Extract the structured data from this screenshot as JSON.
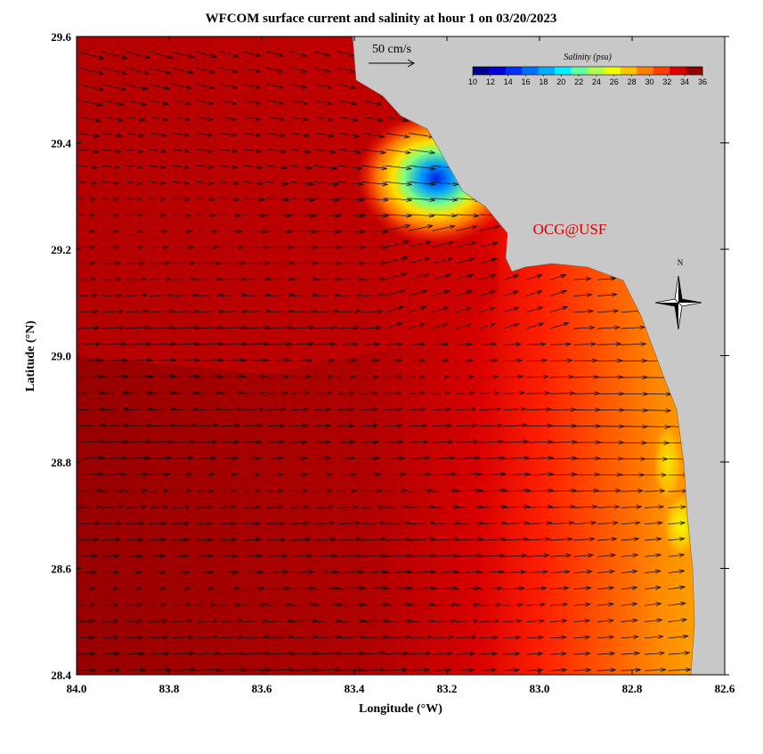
{
  "chart_data": {
    "type": "map",
    "title": "WFCOM surface current and salinity at hour 1 on 03/20/2023",
    "x_label": "Longitude (°W)",
    "y_label": "Latitude (°N)",
    "xlim": [
      84.0,
      82.6
    ],
    "ylim": [
      28.4,
      29.6
    ],
    "xticks": [
      {
        "value": 84,
        "label": "84.0"
      },
      83.8,
      83.6,
      83.4,
      83.2,
      {
        "value": 83,
        "label": "83.0"
      },
      82.8,
      82.6
    ],
    "yticks": [
      {
        "value": 28.4,
        "label": "28.4"
      },
      28.6,
      28.8,
      {
        "value": 29,
        "label": "29.0"
      },
      29.2,
      29.4,
      29.6
    ],
    "colorbar": {
      "title": "Salinity (psu)",
      "ticks": [
        10,
        12,
        14,
        16,
        18,
        20,
        22,
        24,
        26,
        28,
        30,
        32,
        34,
        36
      ],
      "colors": [
        "#00008f",
        "#0000d8",
        "#0030ff",
        "#0070ff",
        "#00b0ff",
        "#00f0ff",
        "#60ffa0",
        "#b0ff50",
        "#f0ff00",
        "#ffc000",
        "#ff8000",
        "#ff4000",
        "#e00000",
        "#900000"
      ]
    },
    "scale_label": "50 cm/s",
    "credit": "OCG@USF",
    "compass_label": "N"
  }
}
